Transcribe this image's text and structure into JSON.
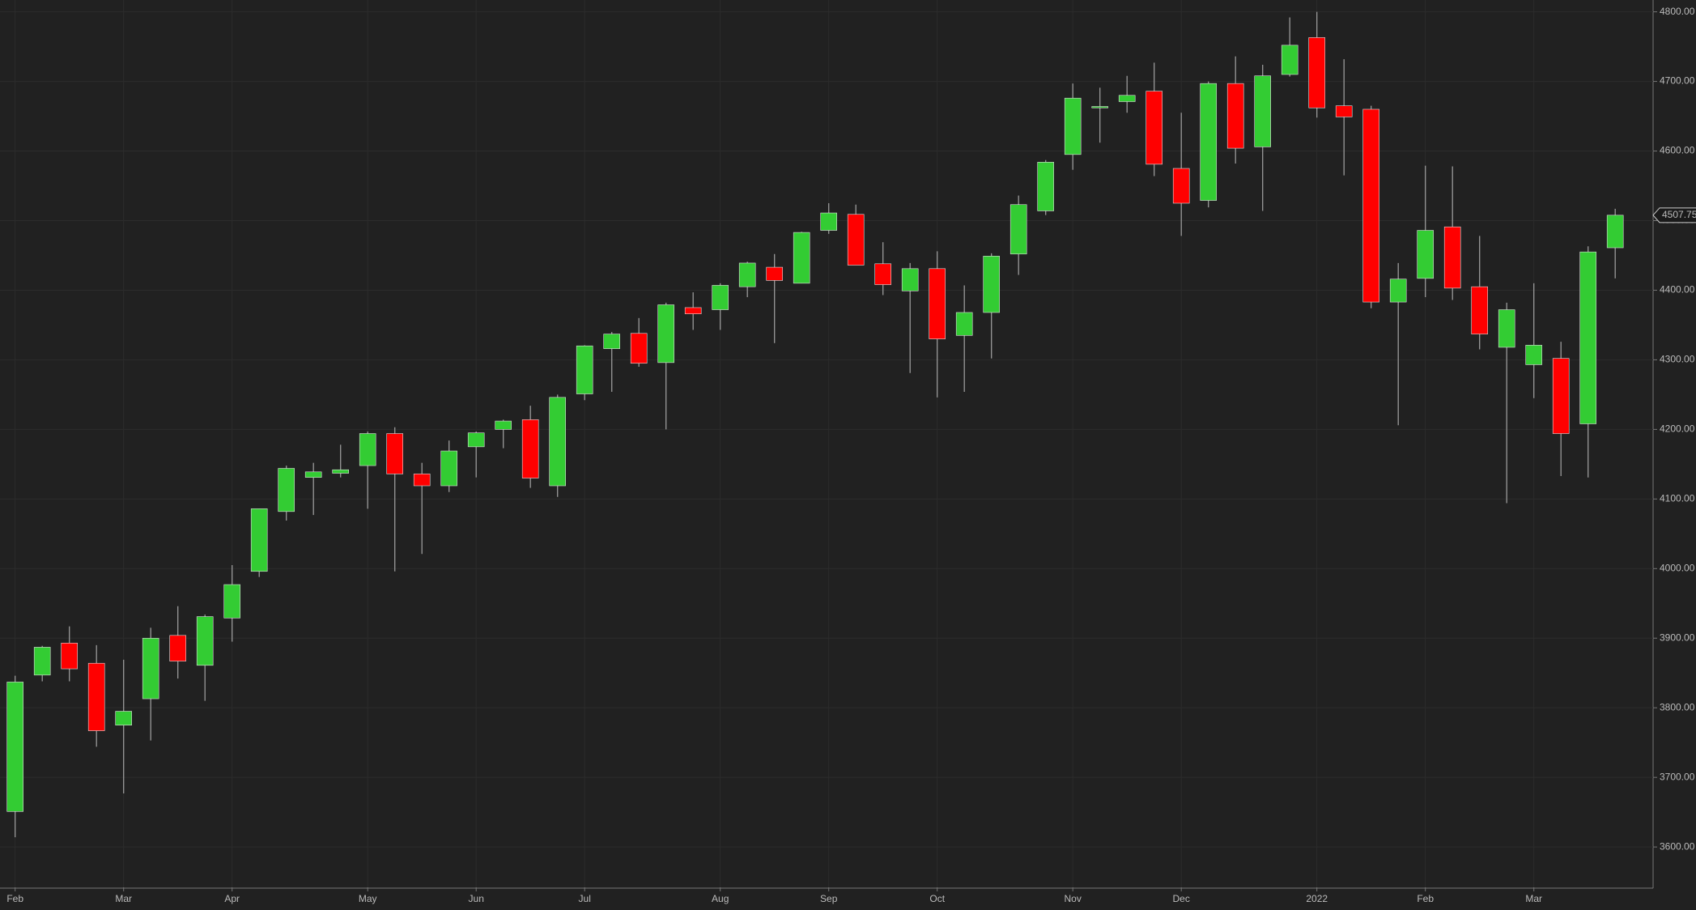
{
  "chart_data": {
    "type": "candlestick",
    "categories": [
      "Feb",
      null,
      null,
      null,
      "Mar",
      null,
      null,
      null,
      "Apr",
      null,
      null,
      null,
      null,
      "May",
      null,
      null,
      null,
      "Jun",
      null,
      null,
      null,
      "Jul",
      null,
      null,
      null,
      null,
      "Aug",
      null,
      null,
      null,
      "Sep",
      null,
      null,
      null,
      "Oct",
      null,
      null,
      null,
      null,
      "Nov",
      null,
      null,
      null,
      "Dec",
      null,
      null,
      null,
      null,
      "2022",
      null,
      null,
      null,
      "Feb",
      null,
      null,
      null,
      "Mar",
      null,
      null,
      null
    ],
    "open": [
      3651,
      3847,
      3893,
      3864,
      3775,
      3813,
      3904,
      3861,
      3929,
      3996,
      4082,
      4131,
      4137,
      4148,
      4194,
      4136,
      4119,
      4175,
      4200,
      4214,
      4119,
      4251,
      4316,
      4338,
      4296,
      4375,
      4372,
      4405,
      4433,
      4410,
      4486,
      4509,
      4438,
      4399,
      4431,
      4335,
      4368,
      4452,
      4514,
      4595,
      4662,
      4671,
      4686,
      4575,
      4529,
      4697,
      4606,
      4710,
      4763,
      4665,
      4660,
      4383,
      4417,
      4491,
      4405,
      4318,
      4293,
      4302,
      4208,
      4461
    ],
    "high": [
      3846,
      3889,
      3917,
      3890,
      3869,
      3915,
      3946,
      3934,
      4005,
      4086,
      4148,
      4152,
      4178,
      4197,
      4203,
      4152,
      4184,
      4197,
      4214,
      4234,
      4250,
      4321,
      4340,
      4360,
      4382,
      4397,
      4410,
      4441,
      4452,
      4484,
      4525,
      4523,
      4469,
      4439,
      4456,
      4407,
      4453,
      4536,
      4587,
      4697,
      4691,
      4708,
      4727,
      4655,
      4700,
      4736,
      4724,
      4792,
      4800,
      4732,
      4665,
      4439,
      4579,
      4578,
      4478,
      4382,
      4410,
      4326,
      4463,
      4517
    ],
    "low": [
      3614,
      3838,
      3838,
      3744,
      3677,
      3753,
      3842,
      3810,
      3895,
      3988,
      4069,
      4077,
      4131,
      4086,
      3996,
      4021,
      4110,
      4131,
      4173,
      4116,
      4103,
      4242,
      4254,
      4290,
      4200,
      4343,
      4343,
      4390,
      4324,
      4410,
      4481,
      4436,
      4393,
      4281,
      4246,
      4254,
      4302,
      4422,
      4508,
      4573,
      4612,
      4655,
      4564,
      4478,
      4519,
      4582,
      4514,
      4707,
      4648,
      4565,
      4374,
      4206,
      4390,
      4386,
      4315,
      4094,
      4245,
      4133,
      4131,
      4417
    ],
    "close": [
      3837,
      3887,
      3856,
      3767,
      3795,
      3900,
      3867,
      3931,
      3977,
      4086,
      4144,
      4139,
      4142,
      4194,
      4136,
      4119,
      4169,
      4195,
      4212,
      4130,
      4246,
      4320,
      4337,
      4295,
      4379,
      4366,
      4407,
      4439,
      4414,
      4483,
      4511,
      4436,
      4408,
      4431,
      4330,
      4368,
      4449,
      4523,
      4584,
      4676,
      4664,
      4680,
      4581,
      4525,
      4697,
      4604,
      4708,
      4752,
      4662,
      4649,
      4383,
      4416,
      4486,
      4403,
      4337,
      4372,
      4321,
      4194,
      4455,
      4507.75
    ],
    "up_color": "#33cc33",
    "down_color": "#ff0000",
    "wick_color": "#9a9a9a",
    "ylim": [
      3542,
      4817
    ],
    "yticks": [
      {
        "value": 3600,
        "label": "3600.00"
      },
      {
        "value": 3700,
        "label": "3700.00"
      },
      {
        "value": 3800,
        "label": "3800.00"
      },
      {
        "value": 3900,
        "label": "3900.00"
      },
      {
        "value": 4000,
        "label": "4000.00"
      },
      {
        "value": 4100,
        "label": "4100.00"
      },
      {
        "value": 4200,
        "label": "4200.00"
      },
      {
        "value": 4300,
        "label": "4300.00"
      },
      {
        "value": 4400,
        "label": "4400.00"
      },
      {
        "value": 4500,
        "label": "4500.00"
      },
      {
        "value": 4600,
        "label": "4600.00"
      },
      {
        "value": 4700,
        "label": "4700.00"
      },
      {
        "value": 4800,
        "label": "4800.00"
      }
    ],
    "grid": true
  }
}
